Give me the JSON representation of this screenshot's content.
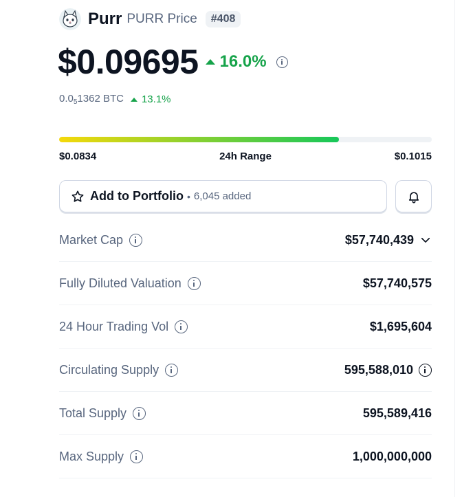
{
  "coin": {
    "name": "Purr",
    "symbol_price_label": "PURR Price",
    "rank": "#408",
    "logo_icon": "cat-logo-icon"
  },
  "price": {
    "value": "$0.09695",
    "change": "16.0%",
    "direction": "up"
  },
  "btc": {
    "prefix": "0.0",
    "zeros": "5",
    "digits": "1362",
    "unit": "BTC",
    "change": "13.1%"
  },
  "range": {
    "low": "$0.0834",
    "label": "24h Range",
    "high": "$0.1015",
    "fill_percent": 75
  },
  "portfolio": {
    "label": "Add to Portfolio",
    "separator": "•",
    "count": "6,045 added"
  },
  "stats": [
    {
      "label": "Market Cap",
      "value": "$57,740,439",
      "suffix": "chevron-down"
    },
    {
      "label": "Fully Diluted Valuation",
      "value": "$57,740,575"
    },
    {
      "label": "24 Hour Trading Vol",
      "value": "$1,695,604"
    },
    {
      "label": "Circulating Supply",
      "value": "595,588,010",
      "suffix": "info"
    },
    {
      "label": "Total Supply",
      "value": "595,589,416"
    },
    {
      "label": "Max Supply",
      "value": "1,000,000,000"
    }
  ],
  "colors": {
    "positive": "#16a34a",
    "text_primary": "#0d1421",
    "text_secondary": "#58667e"
  }
}
